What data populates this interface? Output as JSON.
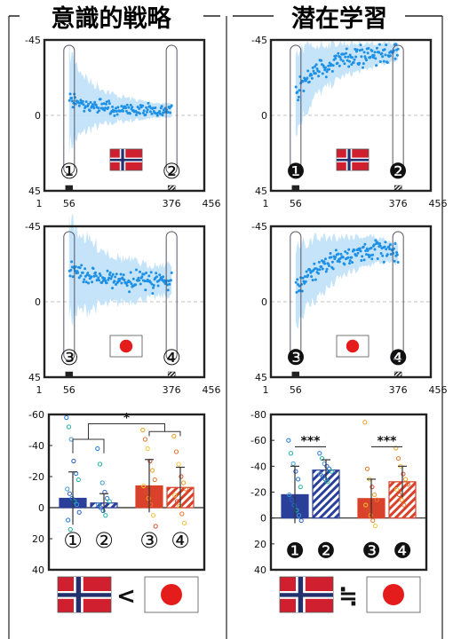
{
  "columns": [
    {
      "title": "意識的戦略"
    },
    {
      "title": "潜在学習"
    }
  ],
  "colors": {
    "point": "#1e90e6",
    "band": "#bfe1f8",
    "frame": "#222222",
    "norway_bar": "#2a3f99",
    "japan_bar": "#d9412b",
    "dots_norway": [
      "#1f77d9",
      "#1fb3a3",
      "#3e9ad6",
      "#2a5fbf"
    ],
    "dots_japan": [
      "#f0a020",
      "#e8762e",
      "#f5c33b",
      "#d94f2b"
    ]
  },
  "chart_data": [
    {
      "type": "scatter",
      "panel": "explicit-norway",
      "x_ticks": [
        "1",
        "56",
        "376",
        "456"
      ],
      "y_ticks": [
        "-45",
        "0",
        "45"
      ],
      "ylim": [
        -45,
        45
      ],
      "xlim": [
        1,
        456
      ],
      "circled_labels": [
        "①",
        "②"
      ],
      "flag": "norway",
      "trend": {
        "x": [
          56,
          80,
          120,
          200,
          300,
          376
        ],
        "y": [
          -10,
          -8,
          -6,
          -4,
          -3,
          -3
        ]
      },
      "band_halfwidth": {
        "x": [
          56,
          80,
          120,
          200,
          300,
          376
        ],
        "y": [
          28,
          22,
          14,
          8,
          5,
          4
        ]
      },
      "noise": 2.5
    },
    {
      "type": "scatter",
      "panel": "implicit-norway",
      "x_ticks": [
        "1",
        "56",
        "376",
        "456"
      ],
      "y_ticks": [
        "-45",
        "0",
        "45"
      ],
      "ylim": [
        -45,
        45
      ],
      "xlim": [
        1,
        456
      ],
      "circled_labels": [
        "❶",
        "❷"
      ],
      "flag": "norway",
      "trend": {
        "x": [
          56,
          80,
          120,
          200,
          300,
          376
        ],
        "y": [
          -12,
          -20,
          -27,
          -33,
          -36,
          -38
        ]
      },
      "band_halfwidth": {
        "x": [
          56,
          80,
          120,
          200,
          300,
          376
        ],
        "y": [
          22,
          20,
          15,
          10,
          7,
          5
        ]
      },
      "noise": 4
    },
    {
      "type": "scatter",
      "panel": "explicit-japan",
      "x_ticks": [
        "1",
        "56",
        "376",
        "456"
      ],
      "y_ticks": [
        "-45",
        "0",
        "45"
      ],
      "ylim": [
        -45,
        45
      ],
      "xlim": [
        1,
        456
      ],
      "circled_labels": [
        "③",
        "④"
      ],
      "flag": "japan",
      "trend": {
        "x": [
          56,
          80,
          120,
          200,
          300,
          376
        ],
        "y": [
          -20,
          -18,
          -16,
          -13,
          -12,
          -13
        ]
      },
      "band_halfwidth": {
        "x": [
          56,
          80,
          120,
          200,
          300,
          376
        ],
        "y": [
          30,
          25,
          20,
          14,
          10,
          9
        ]
      },
      "noise": 4
    },
    {
      "type": "scatter",
      "panel": "implicit-japan",
      "x_ticks": [
        "1",
        "56",
        "376",
        "456"
      ],
      "y_ticks": [
        "-45",
        "0",
        "45"
      ],
      "ylim": [
        -45,
        45
      ],
      "xlim": [
        1,
        456
      ],
      "circled_labels": [
        "❸",
        "❹"
      ],
      "flag": "japan",
      "trend": {
        "x": [
          56,
          80,
          120,
          200,
          300,
          376
        ],
        "y": [
          -8,
          -14,
          -20,
          -27,
          -31,
          -29
        ]
      },
      "band_halfwidth": {
        "x": [
          56,
          80,
          120,
          200,
          300,
          376
        ],
        "y": [
          22,
          20,
          18,
          12,
          8,
          6
        ]
      },
      "noise": 4
    },
    {
      "type": "bar",
      "panel": "explicit-summary",
      "y_ticks": [
        "-60",
        "-40",
        "-20",
        "0",
        "20",
        "40"
      ],
      "ylim": [
        -60,
        40
      ],
      "bar_labels": [
        "①",
        "②",
        "③",
        "④"
      ],
      "values": [
        -6,
        -3,
        -14,
        -13
      ],
      "errors": [
        17,
        6,
        17,
        13
      ],
      "hatched": [
        false,
        true,
        false,
        true
      ],
      "groups": [
        "norway",
        "norway",
        "japan",
        "japan"
      ],
      "significance": [
        {
          "label": "*",
          "between": [
            [
              0,
              1
            ],
            [
              2,
              3
            ]
          ]
        }
      ],
      "dots": [
        [
          -58,
          -52,
          -44,
          -30,
          -22,
          -18,
          -12,
          -9,
          -6,
          -4,
          -2,
          3,
          8,
          14
        ],
        [
          -38,
          -28,
          -16,
          -10,
          -6,
          -4,
          -2,
          0,
          2,
          5
        ],
        [
          -50,
          -44,
          -38,
          -30,
          -24,
          -18,
          -14,
          -10,
          -6,
          -2,
          5,
          12
        ],
        [
          -46,
          -36,
          -28,
          -20,
          -16,
          -12,
          -8,
          -4,
          -1,
          4,
          10
        ]
      ],
      "comparison": "<"
    },
    {
      "type": "bar",
      "panel": "implicit-summary",
      "y_ticks": [
        "-80",
        "-60",
        "-40",
        "-20",
        "0",
        "20",
        "40"
      ],
      "ylim": [
        -80,
        40
      ],
      "bar_labels": [
        "❶",
        "❷",
        "❸",
        "❹"
      ],
      "values": [
        -18,
        -37,
        -15,
        -28
      ],
      "errors": [
        22,
        8,
        15,
        12
      ],
      "hatched": [
        false,
        true,
        false,
        true
      ],
      "groups": [
        "norway",
        "norway",
        "japan",
        "japan"
      ],
      "significance": [
        {
          "label": "***",
          "between": [
            [
              0
            ],
            [
              1
            ]
          ]
        },
        {
          "label": "***",
          "between": [
            [
              2
            ],
            [
              3
            ]
          ]
        }
      ],
      "dots": [
        [
          -60,
          -50,
          -42,
          -36,
          -30,
          -24,
          -18,
          -14,
          -10,
          -6,
          -2,
          2
        ],
        [
          -50,
          -46,
          -42,
          -40,
          -38,
          -36,
          -34,
          -32,
          -30,
          -28
        ],
        [
          -74,
          -38,
          -30,
          -24,
          -18,
          -14,
          -10,
          -6,
          -2,
          2,
          6
        ],
        [
          -54,
          -46,
          -40,
          -34,
          -30,
          -26,
          -22,
          -18,
          -14,
          -10
        ]
      ],
      "comparison": "≒"
    }
  ]
}
